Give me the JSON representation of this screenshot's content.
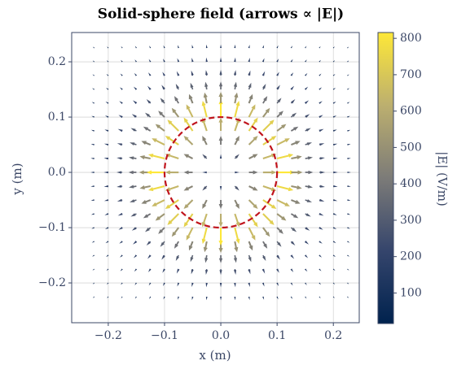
{
  "chart_data": {
    "type": "quiver",
    "title": "Solid-sphere field (arrows ∝ |E|)",
    "x_label": "x (m)",
    "y_label": "y (m)",
    "colorbar_label": "|E| (V/m)",
    "x": [
      -0.225,
      -0.2,
      -0.175,
      -0.15,
      -0.125,
      -0.1,
      -0.075,
      -0.05,
      -0.025,
      0,
      0.025,
      0.05,
      0.075,
      0.1,
      0.125,
      0.15,
      0.175,
      0.2,
      0.225
    ],
    "y": [
      -0.225,
      -0.2,
      -0.175,
      -0.15,
      -0.125,
      -0.1,
      -0.075,
      -0.05,
      -0.025,
      0,
      0.025,
      0.05,
      0.075,
      0.1,
      0.125,
      0.15,
      0.175,
      0.2,
      0.225
    ],
    "magnitude": [
      [
        80,
        90,
        100,
        111,
        123,
        134,
        145,
        153,
        159,
        161,
        159,
        153,
        145,
        134,
        123,
        111,
        100,
        90,
        80
      ],
      [
        90,
        102,
        115,
        130,
        147,
        163,
        179,
        192,
        201,
        204,
        201,
        192,
        179,
        163,
        147,
        130,
        115,
        102,
        90
      ],
      [
        100,
        115,
        133,
        153,
        176,
        201,
        225,
        246,
        261,
        266,
        261,
        246,
        225,
        201,
        176,
        153,
        133,
        115,
        100
      ],
      [
        111,
        130,
        153,
        181,
        214,
        251,
        290,
        326,
        352,
        362,
        352,
        326,
        290,
        251,
        214,
        181,
        153,
        130,
        111
      ],
      [
        123,
        147,
        176,
        214,
        261,
        318,
        384,
        450,
        502,
        522,
        502,
        450,
        384,
        318,
        261,
        214,
        176,
        147,
        123
      ],
      [
        134,
        163,
        201,
        251,
        318,
        408,
        522,
        652,
        767,
        815,
        767,
        652,
        522,
        408,
        318,
        251,
        201,
        163,
        134
      ],
      [
        145,
        179,
        225,
        290,
        384,
        522,
        724,
        735,
        644,
        611,
        644,
        735,
        724,
        522,
        384,
        290,
        225,
        179,
        145
      ],
      [
        153,
        192,
        246,
        326,
        450,
        652,
        735,
        576,
        456,
        408,
        456,
        576,
        735,
        652,
        450,
        326,
        246,
        192,
        153
      ],
      [
        159,
        201,
        261,
        352,
        502,
        767,
        644,
        456,
        288,
        204,
        288,
        456,
        644,
        767,
        502,
        352,
        261,
        201,
        159
      ],
      [
        161,
        204,
        266,
        362,
        522,
        815,
        611,
        408,
        204,
        0,
        204,
        408,
        611,
        815,
        522,
        362,
        266,
        204,
        161
      ],
      [
        159,
        201,
        261,
        352,
        502,
        767,
        644,
        456,
        288,
        204,
        288,
        456,
        644,
        767,
        502,
        352,
        261,
        201,
        159
      ],
      [
        153,
        192,
        246,
        326,
        450,
        652,
        735,
        576,
        456,
        408,
        456,
        576,
        735,
        652,
        450,
        326,
        246,
        192,
        153
      ],
      [
        145,
        179,
        225,
        290,
        384,
        522,
        724,
        735,
        644,
        611,
        644,
        735,
        724,
        522,
        384,
        290,
        225,
        179,
        145
      ],
      [
        134,
        163,
        201,
        251,
        318,
        408,
        522,
        652,
        767,
        815,
        767,
        652,
        522,
        408,
        318,
        251,
        201,
        163,
        134
      ],
      [
        123,
        147,
        176,
        214,
        261,
        318,
        384,
        450,
        502,
        522,
        502,
        450,
        384,
        318,
        261,
        214,
        176,
        147,
        123
      ],
      [
        111,
        130,
        153,
        181,
        214,
        251,
        290,
        326,
        352,
        362,
        352,
        326,
        290,
        251,
        214,
        181,
        153,
        130,
        111
      ],
      [
        100,
        115,
        133,
        153,
        176,
        201,
        225,
        246,
        261,
        266,
        261,
        246,
        225,
        201,
        176,
        153,
        133,
        115,
        100
      ],
      [
        90,
        102,
        115,
        130,
        147,
        163,
        179,
        192,
        201,
        204,
        201,
        192,
        179,
        163,
        147,
        130,
        115,
        102,
        90
      ],
      [
        80,
        90,
        100,
        111,
        123,
        134,
        145,
        153,
        159,
        161,
        159,
        153,
        145,
        134,
        123,
        111,
        100,
        90,
        80
      ]
    ],
    "circle": {
      "radius": 0.1,
      "color": "#c0141c"
    },
    "colormap": "cividis",
    "xlim": [
      -0.265,
      0.246
    ],
    "ylim": [
      -0.272,
      0.253
    ],
    "xticks": [
      {
        "value": -0.2,
        "label": "−0.2"
      },
      {
        "value": -0.1,
        "label": "−0.1"
      },
      {
        "value": 0,
        "label": "0.0"
      },
      0.1,
      0.2
    ],
    "yticks": [
      {
        "value": -0.2,
        "label": "−0.2"
      },
      {
        "value": -0.1,
        "label": "−0.1"
      },
      {
        "value": 0,
        "label": "0.0"
      },
      0.1,
      0.2
    ],
    "clim": [
      16,
      816
    ],
    "cticks": [
      100,
      200,
      300,
      400,
      500,
      600,
      700,
      800
    ],
    "grid": true
  }
}
